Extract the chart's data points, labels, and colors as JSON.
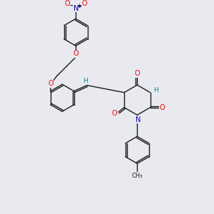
{
  "background_color": "#e8eaf0",
  "bond_color": "#1a1a1a",
  "atom_colors": {
    "O": "#ff0000",
    "N": "#0000cc",
    "H": "#008b8b",
    "C": "#1a1a1a"
  },
  "figsize": [
    3.0,
    3.0
  ],
  "dpi": 100
}
